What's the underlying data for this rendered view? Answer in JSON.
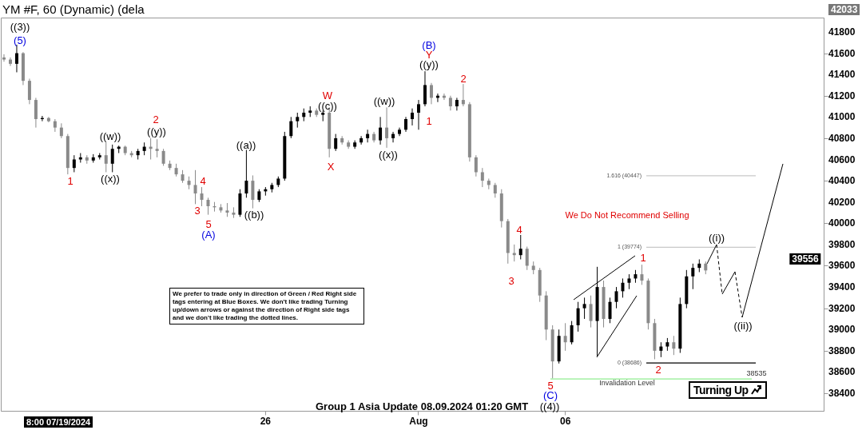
{
  "chart_data": {
    "type": "candlestick",
    "title": "YM #F, 60 (Dynamic) (dela",
    "categories": [
      null,
      null,
      null,
      null,
      null,
      null,
      null,
      null,
      null,
      null,
      null,
      null,
      null,
      null,
      null,
      null,
      null,
      null,
      null,
      null,
      null,
      null,
      null,
      null,
      null,
      null,
      null,
      null,
      null,
      null,
      null,
      null,
      null,
      null,
      null,
      null,
      null,
      null,
      null,
      null,
      null,
      "26",
      null,
      null,
      null,
      null,
      null,
      null,
      null,
      null,
      null,
      null,
      null,
      null,
      null,
      null,
      null,
      null,
      null,
      null,
      null,
      null,
      null,
      null,
      null,
      "Aug",
      null,
      null,
      null,
      null,
      null,
      null,
      null,
      null,
      null,
      null,
      null,
      null,
      null,
      null,
      null,
      null,
      null,
      null,
      null,
      null,
      null,
      null,
      "06",
      null,
      null,
      null,
      null,
      null,
      null,
      null,
      null,
      null,
      null,
      null,
      null,
      null,
      null,
      null,
      null,
      null,
      null,
      null,
      null,
      null,
      null,
      null,
      null,
      null,
      null,
      null,
      null,
      null,
      null,
      null,
      null,
      null,
      null,
      null,
      null,
      null,
      null,
      null,
      null
    ],
    "ohlc": [
      [
        41560,
        41590,
        41520,
        41540
      ],
      [
        41540,
        41560,
        41480,
        41500
      ],
      [
        41500,
        41680,
        41420,
        41600
      ],
      [
        41600,
        41610,
        41300,
        41340
      ],
      [
        41340,
        41360,
        41120,
        41160
      ],
      [
        41160,
        41180,
        40900,
        40980
      ],
      [
        40980,
        41010,
        40960,
        40990
      ],
      [
        40990,
        41000,
        40950,
        40960
      ],
      [
        40960,
        40980,
        40860,
        40900
      ],
      [
        40900,
        40940,
        40800,
        40820
      ],
      [
        40820,
        40840,
        40460,
        40520
      ],
      [
        40520,
        40640,
        40480,
        40600
      ],
      [
        40600,
        40660,
        40570,
        40620
      ],
      [
        40620,
        40640,
        40560,
        40590
      ],
      [
        40590,
        40650,
        40570,
        40620
      ],
      [
        40620,
        40660,
        40600,
        40640
      ],
      [
        40640,
        40760,
        40480,
        40560
      ],
      [
        40560,
        40740,
        40480,
        40700
      ],
      [
        40700,
        40730,
        40660,
        40720
      ],
      [
        40720,
        40730,
        40640,
        40660
      ],
      [
        40660,
        40680,
        40620,
        40640
      ],
      [
        40640,
        40700,
        40600,
        40680
      ],
      [
        40680,
        40760,
        40640,
        40720
      ],
      [
        40720,
        40800,
        40600,
        40700
      ],
      [
        40700,
        40790,
        40620,
        40680
      ],
      [
        40680,
        40700,
        40540,
        40560
      ],
      [
        40560,
        40590,
        40500,
        40520
      ],
      [
        40520,
        40560,
        40440,
        40460
      ],
      [
        40460,
        40500,
        40380,
        40400
      ],
      [
        40400,
        40440,
        40320,
        40360
      ],
      [
        40360,
        40500,
        40180,
        40280
      ],
      [
        40280,
        40340,
        40160,
        40220
      ],
      [
        40220,
        40240,
        40080,
        40160
      ],
      [
        40160,
        40200,
        40110,
        40150
      ],
      [
        40150,
        40180,
        40100,
        40120
      ],
      [
        40120,
        40190,
        40060,
        40100
      ],
      [
        40100,
        40150,
        40050,
        40080
      ],
      [
        40080,
        40320,
        40060,
        40280
      ],
      [
        40280,
        40690,
        40240,
        40400
      ],
      [
        40400,
        40450,
        40140,
        40220
      ],
      [
        40220,
        40320,
        40200,
        40300
      ],
      [
        40300,
        40340,
        40260,
        40320
      ],
      [
        40320,
        40380,
        40290,
        40360
      ],
      [
        40360,
        40440,
        40340,
        40420
      ],
      [
        40420,
        40860,
        40400,
        40820
      ],
      [
        40820,
        41000,
        40800,
        40960
      ],
      [
        40960,
        41040,
        40900,
        41000
      ],
      [
        41000,
        41080,
        40960,
        41040
      ],
      [
        41040,
        41100,
        41000,
        41060
      ],
      [
        41060,
        41080,
        41000,
        41020
      ],
      [
        41020,
        41060,
        40960,
        41040
      ],
      [
        41040,
        41080,
        40620,
        40700
      ],
      [
        40700,
        40840,
        40680,
        40800
      ],
      [
        40800,
        40820,
        40740,
        40760
      ],
      [
        40760,
        40780,
        40700,
        40720
      ],
      [
        40720,
        40780,
        40700,
        40760
      ],
      [
        40760,
        40820,
        40740,
        40800
      ],
      [
        40800,
        40880,
        40760,
        40840
      ],
      [
        40840,
        40860,
        40760,
        40780
      ],
      [
        40780,
        41000,
        40740,
        40900
      ],
      [
        40900,
        41090,
        40710,
        40800
      ],
      [
        40800,
        40860,
        40760,
        40840
      ],
      [
        40840,
        40900,
        40820,
        40880
      ],
      [
        40880,
        41000,
        40860,
        40980
      ],
      [
        40980,
        41080,
        40920,
        41040
      ],
      [
        41040,
        41160,
        40880,
        41120
      ],
      [
        41120,
        41430,
        41100,
        41300
      ],
      [
        41300,
        41320,
        41120,
        41180
      ],
      [
        41180,
        41220,
        41140,
        41200
      ],
      [
        41200,
        41220,
        41160,
        41180
      ],
      [
        41180,
        41200,
        41060,
        41100
      ],
      [
        41100,
        41180,
        41060,
        41160
      ],
      [
        41160,
        41310,
        41100,
        41120
      ],
      [
        41120,
        41140,
        40580,
        40620
      ],
      [
        40620,
        40640,
        40440,
        40480
      ],
      [
        40480,
        40520,
        40340,
        40400
      ],
      [
        40400,
        40420,
        40320,
        40360
      ],
      [
        40360,
        40380,
        40240,
        40280
      ],
      [
        40280,
        40320,
        39960,
        40020
      ],
      [
        40020,
        40040,
        39620,
        39720
      ],
      [
        39720,
        39800,
        39640,
        39700
      ],
      [
        39700,
        39890,
        39660,
        39760
      ],
      [
        39760,
        39780,
        39560,
        39600
      ],
      [
        39600,
        39640,
        39520,
        39560
      ],
      [
        39560,
        39580,
        39260,
        39320
      ],
      [
        39320,
        39360,
        38900,
        39000
      ],
      [
        39000,
        39040,
        38540,
        38700
      ],
      [
        38700,
        39000,
        38680,
        38940
      ],
      [
        38940,
        39060,
        38800,
        38880
      ],
      [
        38880,
        39080,
        38860,
        39040
      ],
      [
        39040,
        39260,
        38980,
        39200
      ],
      [
        39200,
        39300,
        39100,
        39240
      ],
      [
        39240,
        39320,
        39020,
        39080
      ],
      [
        39080,
        39590,
        38750,
        39400
      ],
      [
        39400,
        39460,
        39020,
        39100
      ],
      [
        39100,
        39300,
        39060,
        39260
      ],
      [
        39260,
        39400,
        39200,
        39360
      ],
      [
        39360,
        39480,
        39300,
        39440
      ],
      [
        39440,
        39520,
        39380,
        39480
      ],
      [
        39480,
        39560,
        39440,
        39520
      ],
      [
        39520,
        39610,
        39420,
        39460
      ],
      [
        39460,
        39480,
        39000,
        39060
      ],
      [
        39060,
        39100,
        38720,
        38800
      ],
      [
        38800,
        38880,
        38740,
        38840
      ],
      [
        38840,
        38920,
        38800,
        38880
      ],
      [
        38880,
        38940,
        38760,
        38820
      ],
      [
        38820,
        39300,
        38780,
        39240
      ],
      [
        39240,
        39560,
        39200,
        39500
      ],
      [
        39500,
        39620,
        39380,
        39580
      ],
      [
        39580,
        39660,
        39540,
        39620
      ],
      [
        39620,
        39640,
        39520,
        39556
      ],
      null,
      null,
      null,
      null,
      null,
      null,
      null,
      null,
      null,
      null,
      null,
      null,
      null,
      null,
      null,
      null,
      null,
      null
    ],
    "ylim": [
      38235,
      41935
    ],
    "yticks": [
      38400,
      38600,
      38800,
      39000,
      39200,
      39400,
      39600,
      39800,
      40000,
      40200,
      40400,
      40600,
      40800,
      41000,
      41200,
      41400,
      41600,
      41800
    ],
    "grid": false,
    "ref_lines": [
      {
        "axis": "y",
        "value": 40447,
        "label": "1.616 (40447)",
        "color": "#c8c8c8"
      },
      {
        "axis": "y",
        "value": 39774,
        "label": "1 (39774)",
        "color": "#c8c8c8"
      },
      {
        "axis": "y",
        "value": 38686,
        "label": "0 (38686)",
        "color": "#000000"
      },
      {
        "axis": "y",
        "value": 38535,
        "label": "38535",
        "color": "#90ee90"
      }
    ],
    "annotations": [
      "((3))",
      "(5)",
      "1",
      "((w))",
      "((x))",
      "2",
      "((y))",
      "4",
      "3",
      "5",
      "(A)",
      "((a))",
      "((b))",
      "W",
      "((c))",
      "X",
      "((w))",
      "((x))",
      "(B)",
      "Y",
      "((y))",
      "1",
      "2",
      "4",
      "3",
      "5",
      "(C)",
      "((4))",
      {
        "text": "1",
        "y": 39610
      },
      "2",
      {
        "text": "((i))",
        "y": 39800
      },
      "((ii))",
      "Invalidation Level",
      "We Do Not Recommend Selling",
      "We prefer to trade only in direction of Green / Red Right side tags entering at Blue Boxes. We don't like trading Turning up/down arrows or against the direction of Right side tags and we don't like trading the dotted lines.",
      "Group 1 Asia Update 08.09.2024 01:20 GMT",
      "Turning Up",
      "8:00 07/19/2024",
      "42033",
      "39556"
    ]
  }
}
